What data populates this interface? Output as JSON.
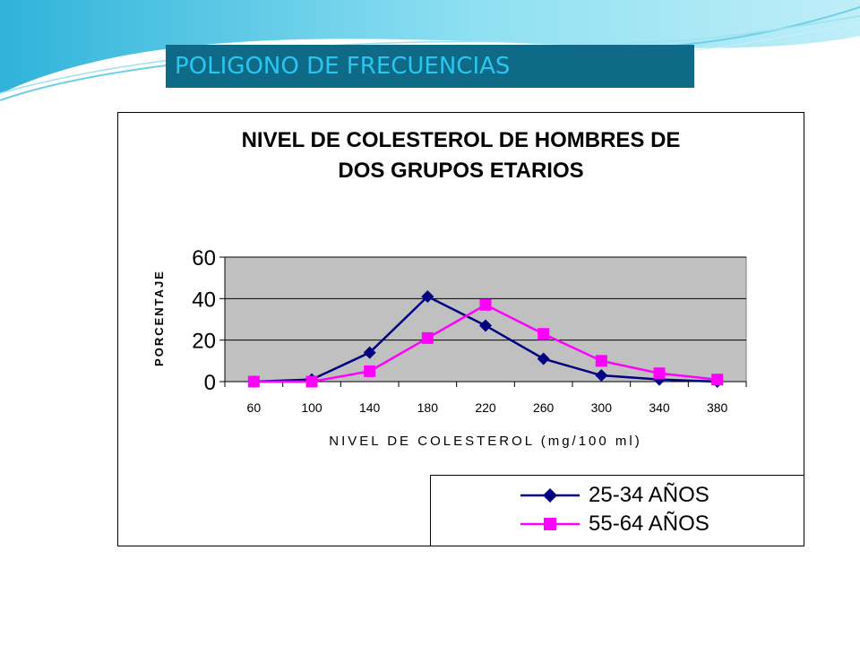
{
  "slide": {
    "heading": "POLIGONO DE FRECUENCIAS"
  },
  "chart_data": {
    "type": "line",
    "title_lines": [
      "NIVEL DE COLESTEROL DE HOMBRES DE",
      "DOS GRUPOS ETARIOS"
    ],
    "xlabel": "NIVEL DE COLESTEROL (mg/100 ml)",
    "ylabel": "PORCENTAJE",
    "categories": [
      "60",
      "100",
      "140",
      "180",
      "220",
      "260",
      "300",
      "340",
      "380"
    ],
    "ylim": [
      0,
      60
    ],
    "yticks": [
      0,
      20,
      40,
      60
    ],
    "grid": true,
    "legend_position": "bottom-right",
    "series": [
      {
        "name": "25-34 AÑOS",
        "color": "#000080",
        "marker": "diamond",
        "values": [
          0,
          1,
          14,
          41,
          27,
          11,
          3,
          1,
          0
        ]
      },
      {
        "name": "55-64 AÑOS",
        "color": "#ff00ff",
        "marker": "square",
        "values": [
          0,
          0,
          5,
          21,
          37,
          23,
          10,
          4,
          1
        ]
      }
    ],
    "plot_background": "#c0c0c0"
  }
}
